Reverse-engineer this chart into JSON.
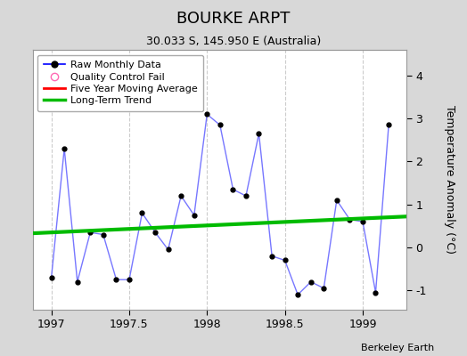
{
  "title": "BOURKE ARPT",
  "subtitle": "30.033 S, 145.950 E (Australia)",
  "ylabel": "Temperature Anomaly (°C)",
  "credit": "Berkeley Earth",
  "background_color": "#d8d8d8",
  "plot_bg_color": "#ffffff",
  "xlim": [
    1996.88,
    1999.28
  ],
  "ylim": [
    -1.45,
    4.6
  ],
  "yticks": [
    -1,
    0,
    1,
    2,
    3,
    4
  ],
  "xticks": [
    1997,
    1997.5,
    1998,
    1998.5,
    1999
  ],
  "xtick_labels": [
    "1997",
    "1997.5",
    "1998",
    "1998.5",
    "1999"
  ],
  "raw_x": [
    1997.0,
    1997.083,
    1997.167,
    1997.25,
    1997.333,
    1997.417,
    1997.5,
    1997.583,
    1997.667,
    1997.75,
    1997.833,
    1997.917,
    1998.0,
    1998.083,
    1998.167,
    1998.25,
    1998.333,
    1998.417,
    1998.5,
    1998.583,
    1998.667,
    1998.75,
    1998.833,
    1998.917,
    1999.0,
    1999.083,
    1999.167
  ],
  "raw_y": [
    -0.7,
    2.3,
    -0.8,
    0.35,
    0.3,
    -0.75,
    -0.75,
    0.8,
    0.35,
    -0.05,
    1.2,
    0.75,
    3.1,
    2.85,
    1.35,
    1.2,
    2.65,
    -0.2,
    -0.3,
    -1.1,
    -0.8,
    -0.95,
    1.1,
    0.65,
    0.6,
    -1.05,
    2.85
  ],
  "trend_x": [
    1996.88,
    1999.28
  ],
  "trend_y": [
    0.33,
    0.72
  ],
  "raw_line_color": "#7777ff",
  "raw_dot_color": "#000000",
  "trend_color": "#00bb00",
  "ma_color": "#ff0000",
  "grid_color": "#cccccc",
  "grid_style": "--"
}
